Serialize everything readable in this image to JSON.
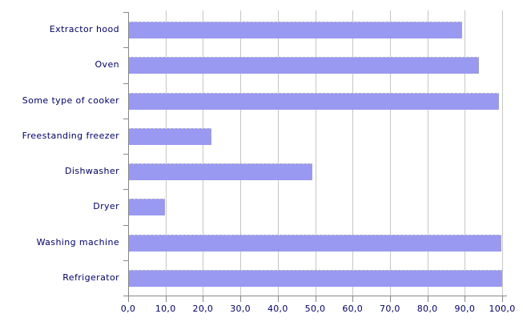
{
  "chart_data": {
    "type": "bar",
    "orientation": "horizontal",
    "title": "",
    "xlabel": "",
    "ylabel": "",
    "legend": false,
    "grid": true,
    "xlim": [
      0,
      100
    ],
    "categories": [
      "Extractor hood",
      "Oven",
      "Some type of cooker",
      "Freestanding freezer",
      "Dishwasher",
      "Dryer",
      "Washing machine",
      "Refrigerator"
    ],
    "values": [
      89.0,
      93.6,
      99.0,
      22.0,
      49.0,
      9.6,
      99.6,
      99.8
    ],
    "x_tick_values": [
      0,
      10,
      20,
      30,
      40,
      50,
      60,
      70,
      80,
      90,
      100
    ],
    "x_tick_labels": [
      "0,0",
      "10,0",
      "20,0",
      "30,0",
      "40,0",
      "50,0",
      "60,0",
      "70,0",
      "80,0",
      "90,0",
      "100,0"
    ],
    "colors": {
      "bar_fill": "#9999f2",
      "gridline": "#c6c6c6",
      "axis": "#888888",
      "text": "#000066",
      "background": "#ffffff"
    }
  }
}
